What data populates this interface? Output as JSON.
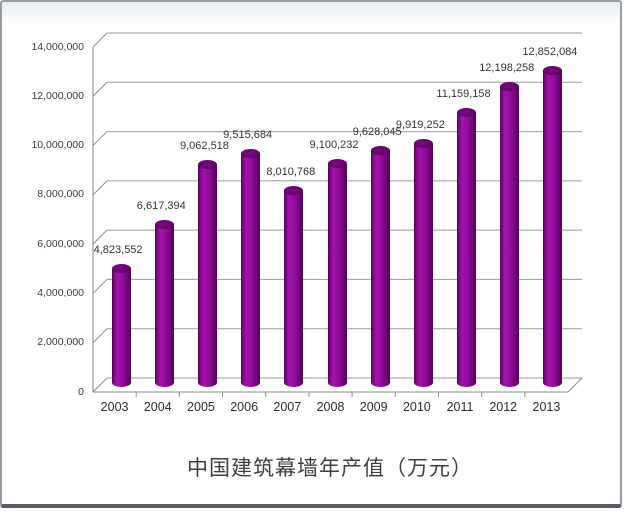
{
  "chart_data": {
    "type": "bar",
    "style": "3d-cylinder",
    "title": "中国建筑幕墙年产值（万元）",
    "xlabel": "",
    "ylabel": "",
    "ylim": [
      0,
      14000000
    ],
    "grid": true,
    "legend": "none",
    "categories": [
      "2003",
      "2004",
      "2005",
      "2006",
      "2007",
      "2008",
      "2009",
      "2010",
      "2011",
      "2012",
      "2013"
    ],
    "values": [
      4823552,
      6617394,
      9062518,
      9515684,
      8010768,
      9100232,
      9628045,
      9919252,
      11159158,
      12198258,
      12852084
    ],
    "value_labels": [
      "4,823,552",
      "6,617,394",
      "9,062,518",
      "9,515,684",
      "8,010,768",
      "9,100,232",
      "9,628,045",
      "9,919,252",
      "11,159,158",
      "12,198,258",
      "12,852,084"
    ],
    "y_ticks": [
      {
        "value": 0,
        "label": "0"
      },
      {
        "value": 2000000,
        "label": "2,000,000"
      },
      {
        "value": 4000000,
        "label": "4,000,000"
      },
      {
        "value": 6000000,
        "label": "6,000,000"
      },
      {
        "value": 8000000,
        "label": "8,000,000"
      },
      {
        "value": 10000000,
        "label": "10,000,000"
      },
      {
        "value": 12000000,
        "label": "12,000,000"
      },
      {
        "value": 14000000,
        "label": "14,000,000"
      }
    ],
    "colors": {
      "bar_main": "#8c0b92",
      "bar_highlight": "#a413ab",
      "bar_edge_dark": "#4a0248",
      "bar_top": "#5d0263",
      "grid_line": "#9a9a9a",
      "axis_line": "#8a8a8a",
      "tick_label": "#3a3a3a",
      "value_label": "#333333",
      "title": "#3f3f3f"
    }
  }
}
